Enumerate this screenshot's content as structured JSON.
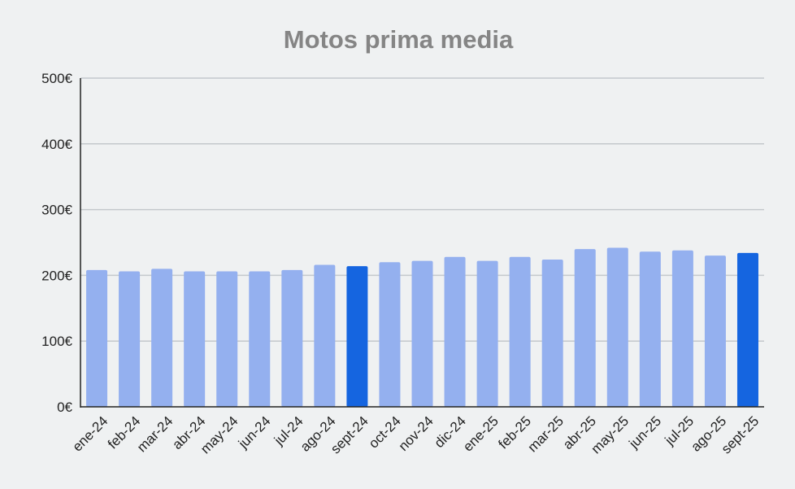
{
  "chart_data": {
    "type": "bar",
    "title": "Motos prima media",
    "xlabel": "",
    "ylabel": "",
    "ylim": [
      0,
      500
    ],
    "yticks": [
      0,
      100,
      200,
      300,
      400,
      500
    ],
    "ytick_labels": [
      "0€",
      "100€",
      "200€",
      "300€",
      "400€",
      "500€"
    ],
    "grid": true,
    "legend": "none",
    "categories": [
      "ene-24",
      "feb-24",
      "mar-24",
      "abr-24",
      "may-24",
      "jun-24",
      "jul-24",
      "ago-24",
      "sept-24",
      "oct-24",
      "nov-24",
      "dic-24",
      "ene-25",
      "feb-25",
      "mar-25",
      "abr-25",
      "may-25",
      "jun-25",
      "jul-25",
      "ago-25",
      "sept-25"
    ],
    "values": [
      208,
      206,
      210,
      206,
      206,
      206,
      208,
      216,
      214,
      220,
      222,
      228,
      222,
      228,
      224,
      240,
      242,
      236,
      238,
      230,
      234
    ],
    "highlighted": [
      "sept-24",
      "sept-25"
    ]
  },
  "colors": {
    "background": "#eff1f2",
    "bar": "#94b0ef",
    "bar_highlight": "#1565e0",
    "title": "#858585",
    "grid": "#c4c8cc",
    "axis": "#222222"
  }
}
